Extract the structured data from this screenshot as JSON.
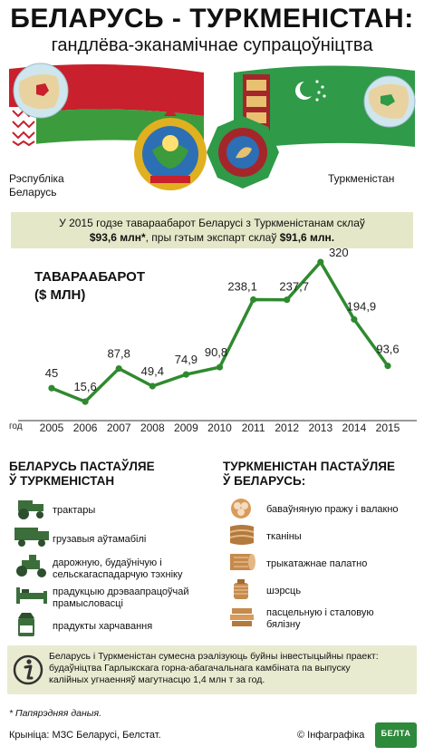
{
  "header": {
    "title": "БЕЛАРУСЬ - ТУРКМЕНІСТАН:",
    "subtitle": "гандлёва-эканамічнае супрацоўніцтва"
  },
  "countries": {
    "left_line1": "Рэспубліка",
    "left_line2": "Беларусь",
    "right": "Туркменістан"
  },
  "highlight": {
    "line1": "У 2015 годзе тавараабарот Беларусі з Туркменістанам склаў",
    "line2_pre": "$93,6 млн*",
    "line2_mid": ", пры гэтым экспарт склаў ",
    "line2_post": "$91,6 млн."
  },
  "chart_title": "ТАВАРААБАРОТ",
  "chart_unit": "($ МЛН)",
  "chart_data": {
    "type": "line",
    "title": "ТАВАРААБАРОТ ($ МЛН)",
    "xlabel": "год",
    "ylabel": "",
    "x": [
      "2005",
      "2006",
      "2007",
      "2008",
      "2009",
      "2010",
      "2011",
      "2012",
      "2013",
      "2014",
      "2015"
    ],
    "values": [
      45,
      15.6,
      87.8,
      49.4,
      74.9,
      90.8,
      238.1,
      237.7,
      320,
      194.9,
      93.6
    ],
    "labels": [
      "45",
      "15,6",
      "87,8",
      "49,4",
      "74,9",
      "90,8",
      "238,1",
      "237,7",
      "320",
      "194,9",
      "93,6"
    ],
    "ylim": [
      0,
      330
    ],
    "line_color": "#2f8a2f"
  },
  "exports": {
    "title_line1": "БЕЛАРУСЬ ПАСТАЎЛЯЕ",
    "title_line2": "Ў ТУРКМЕНІСТАН",
    "items": [
      {
        "icon": "tractor-icon",
        "label_line1": "трактары",
        "label_line2": ""
      },
      {
        "icon": "truck-icon",
        "label_line1": "грузавыя аўтамабілі",
        "label_line2": ""
      },
      {
        "icon": "road-machine-icon",
        "label_line1": "дарожную, будаўнічую і",
        "label_line2": "сельскагаспадарчую тэхніку"
      },
      {
        "icon": "bed-icon",
        "label_line1": "прадукцыю дрэваапрацоўчай",
        "label_line2": "прамысловасці"
      },
      {
        "icon": "milk-icon",
        "label_line1": "прадукты харчавання",
        "label_line2": ""
      }
    ]
  },
  "imports": {
    "title_line1": "ТУРКМЕНІСТАН ПАСТАЎЛЯЕ",
    "title_line2": "Ў БЕЛАРУСЬ:",
    "items": [
      {
        "icon": "cotton-icon",
        "label_line1": "баваўняную пражу і валакно",
        "label_line2": ""
      },
      {
        "icon": "fabric-icon",
        "label_line1": "тканіны",
        "label_line2": ""
      },
      {
        "icon": "knit-fabric-icon",
        "label_line1": "трыкатажнае палатно",
        "label_line2": ""
      },
      {
        "icon": "wool-icon",
        "label_line1": "шэрсць",
        "label_line2": ""
      },
      {
        "icon": "linen-icon",
        "label_line1": "пасцельную і сталовую",
        "label_line2": "бялізну"
      }
    ]
  },
  "info": {
    "line1": "Беларусь і Туркменістан сумесна рэалізуюць буйны інвестыцыйны праект:",
    "line2": "будаўніцтва Гарлыкскага горна-абагачальнага камбіната па выпуску",
    "line3": "калійных угнаенняў магутнасцю 1,4 млн т за год."
  },
  "footnote": "* Папярэдняя даныя.",
  "source": "Крыніца: МЗС Беларусі, Белстат.",
  "copyright": "© Інфаграфіка",
  "logo_text": "БЕЛТА"
}
